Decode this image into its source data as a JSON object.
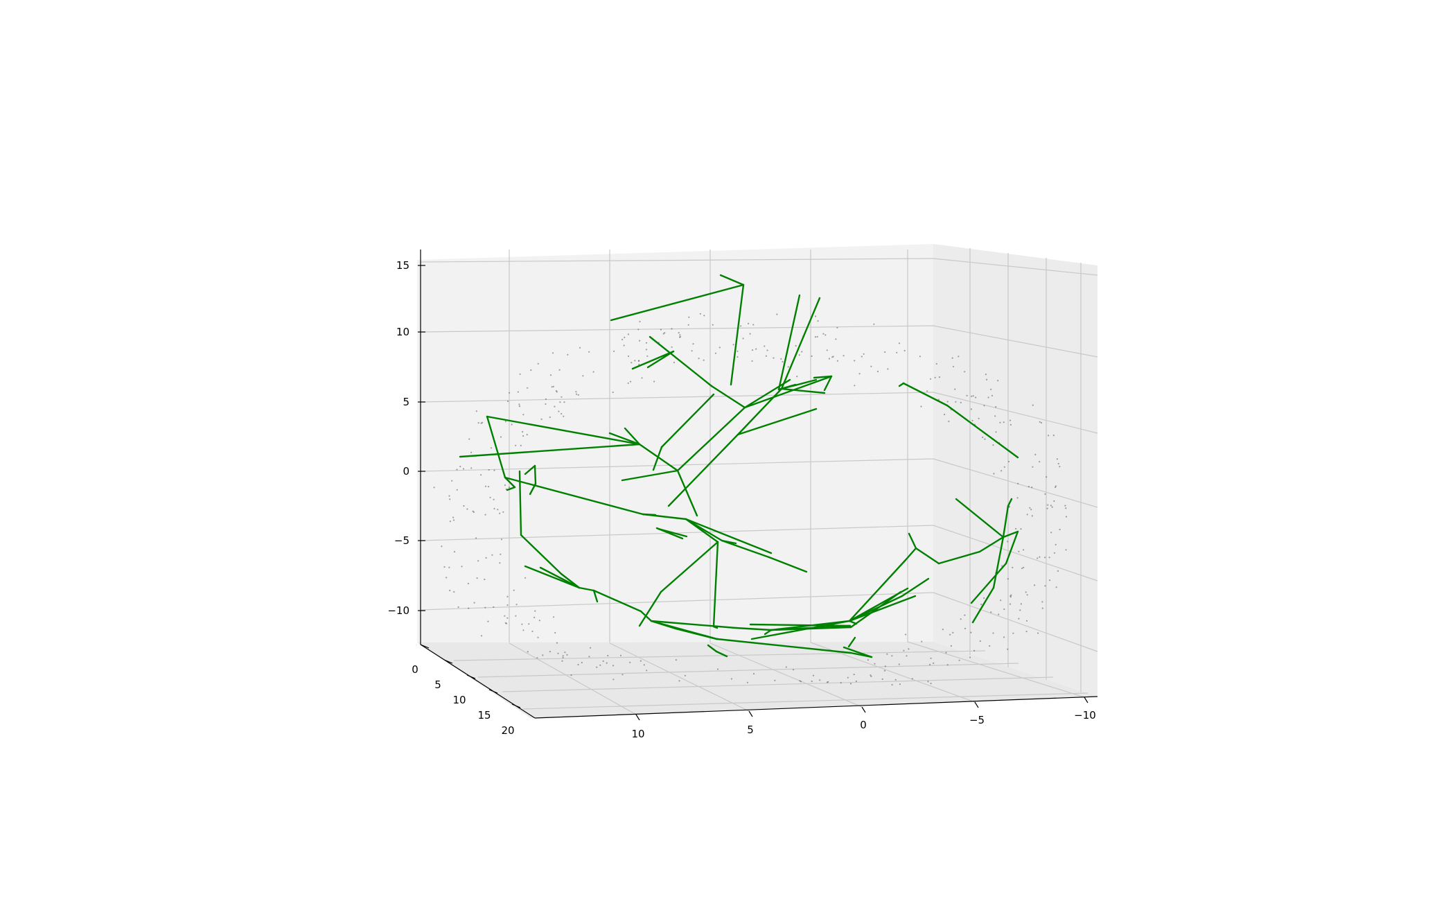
{
  "chart_data": {
    "type": "3d-line-scatter",
    "title": "",
    "xlabel": "",
    "ylabel": "",
    "zlabel": "",
    "grid": true,
    "x_ticks": [
      "10",
      "5",
      "0",
      "−5",
      "−10"
    ],
    "y_ticks": [
      "0",
      "5",
      "10",
      "15",
      "20"
    ],
    "z_ticks": [
      "15",
      "10",
      "5",
      "0",
      "−5",
      "−10"
    ],
    "colors": {
      "tree": "#008000",
      "points": "#555555",
      "pane_back": "#f2f2f2",
      "pane_side": "#ececec",
      "pane_floor": "#e8e8e8",
      "grid": "#c8c8c8"
    }
  }
}
